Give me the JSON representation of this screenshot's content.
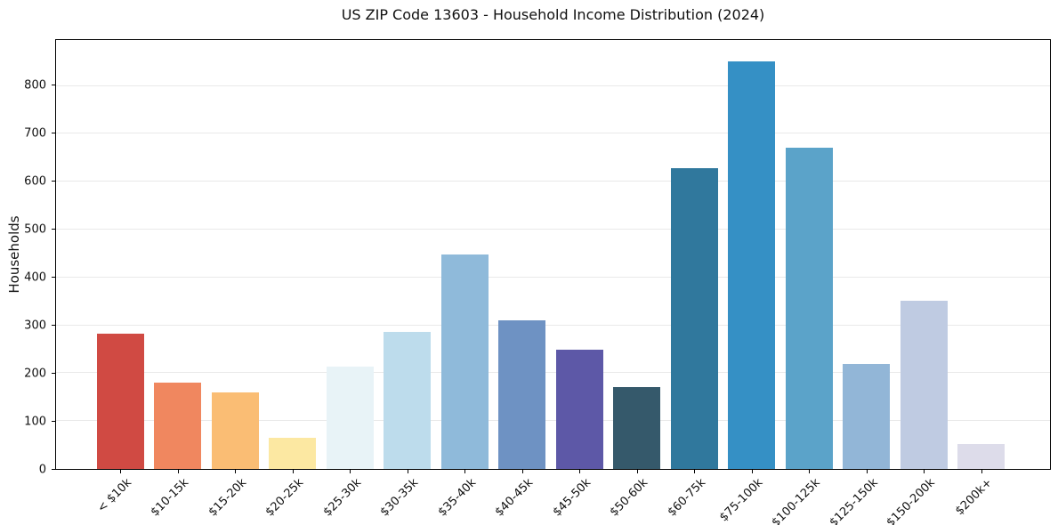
{
  "chart_data": {
    "type": "bar",
    "title": "US ZIP Code 13603 - Household Income Distribution (2024)",
    "xlabel": "",
    "ylabel": "Households",
    "categories": [
      "< $10k",
      "$10-15k",
      "$15-20k",
      "$20-25k",
      "$25-30k",
      "$30-35k",
      "$35-40k",
      "$40-45k",
      "$45-50k",
      "$50-60k",
      "$60-75k",
      "$75-100k",
      "$100-125k",
      "$125-150k",
      "$150-200k",
      "$200k+"
    ],
    "values": [
      283,
      181,
      159,
      66,
      213,
      287,
      448,
      311,
      249,
      171,
      628,
      852,
      672,
      220,
      352,
      52
    ],
    "bar_colors": [
      "#d04a43",
      "#f0875f",
      "#fabd74",
      "#fce8a2",
      "#e8f3f7",
      "#bddcec",
      "#8fbada",
      "#6e92c3",
      "#5d58a7",
      "#35596b",
      "#30789d",
      "#3590c5",
      "#5ba3c9",
      "#92b6d7",
      "#bfcbe2",
      "#dddcea"
    ],
    "ylim": [
      0,
      896
    ],
    "yticks": [
      0,
      100,
      200,
      300,
      400,
      500,
      600,
      700,
      800
    ],
    "grid": "horizontal-only",
    "legend": "none",
    "x_tick_rotation_deg": 45
  },
  "style": {
    "background": "#ffffff",
    "grid_color": "#e9e9e9",
    "spine_color": "#000000",
    "text_color": "#111111"
  }
}
